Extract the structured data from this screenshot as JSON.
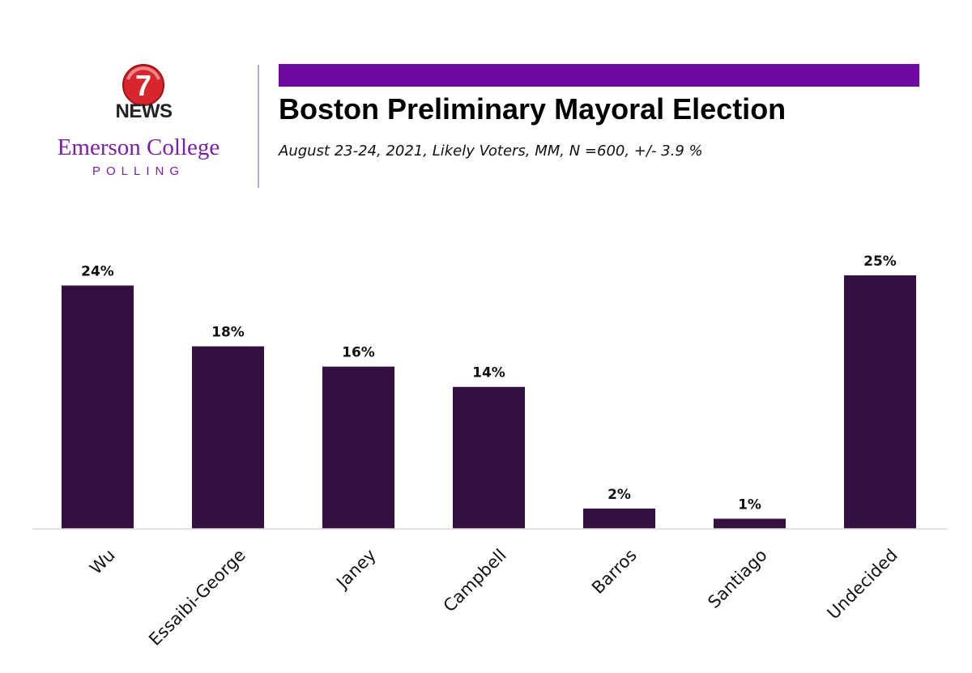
{
  "logo": {
    "badge_number": "7",
    "news_text": "NEWS",
    "college_text": "Emerson College",
    "polling_text": "POLLING",
    "badge_color": "#d8262c",
    "brand_purple": "#7a1fa8"
  },
  "header": {
    "band_color": "#6e0a9f"
  },
  "chart_data": {
    "type": "bar",
    "title": "Boston Preliminary Mayoral Election",
    "subtitle": "August 23-24, 2021, Likely Voters, MM, N =600, +/-  3.9 %",
    "categories": [
      "Wu",
      "Essaibi-George",
      "Janey",
      "Campbell",
      "Barros",
      "Santiago",
      "Undecided"
    ],
    "values": [
      24,
      18,
      16,
      14,
      2,
      1,
      25
    ],
    "value_labels": [
      "24%",
      "18%",
      "16%",
      "14%",
      "2%",
      "1%",
      "25%"
    ],
    "ylim": [
      0,
      25
    ],
    "grid": false,
    "legend": "none",
    "bar_color": "#341040"
  }
}
